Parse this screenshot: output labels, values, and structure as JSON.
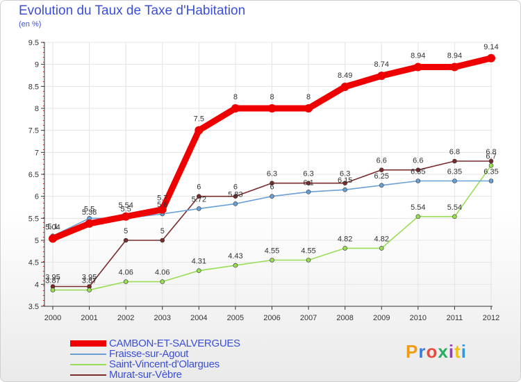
{
  "header": {
    "title": "Evolution du Taux de Taxe d'Habitation",
    "subtitle": "(en %)"
  },
  "logo": {
    "text": "Proxiti",
    "colors": [
      "#f39c12",
      "#3b7dd8",
      "#e74c3c",
      "#27ae60",
      "#8e44ad",
      "#f1c40f",
      "#3498db"
    ]
  },
  "chart_data": {
    "type": "line",
    "title": "Evolution du Taux de Taxe d'Habitation",
    "subtitle": "(en %)",
    "x": [
      "2000",
      "2001",
      "2002",
      "2003",
      "2004",
      "2005",
      "2006",
      "2007",
      "2008",
      "2009",
      "2010",
      "2011",
      "2012"
    ],
    "ylim": [
      3.5,
      9.5
    ],
    "yticks": [
      "3.5",
      "4",
      "4.5",
      "5",
      "5.5",
      "6",
      "6.5",
      "7",
      "7.5",
      "8",
      "8.5",
      "9",
      "9.5"
    ],
    "grid": true,
    "legend_position": "bottom-left",
    "series": [
      {
        "name": "CAMBON-ET-SALVERGUES",
        "color": "#ee0000",
        "values": [
          5.04,
          5.38,
          5.54,
          5.7,
          7.5,
          8,
          8,
          8,
          8.49,
          8.74,
          8.94,
          8.94,
          9.14
        ],
        "labels": [
          "5.04",
          "5.38",
          "5.54",
          "5.7",
          "7.5",
          "8",
          "8",
          "8",
          "8.49",
          "8.74",
          "8.94",
          "8.94",
          "9.14"
        ]
      },
      {
        "name": "Fraisse-sur-Agout",
        "color": "#6a9fd4",
        "values": [
          5.1,
          5.5,
          5.5,
          5.6,
          5.72,
          5.83,
          6,
          6.1,
          6.15,
          6.25,
          6.35,
          6.35,
          6.35
        ],
        "labels": [
          "5.1",
          "5.5",
          "5.5",
          "5.6",
          "5.72",
          "5.83",
          "6",
          "6.1",
          "6.15",
          "6.25",
          "6.35",
          "6.35",
          "6.35"
        ]
      },
      {
        "name": "Saint-Vincent-d'Olargues",
        "color": "#99dd55",
        "values": [
          3.87,
          3.87,
          4.06,
          4.06,
          4.31,
          4.43,
          4.55,
          4.55,
          4.82,
          4.82,
          5.54,
          5.54,
          6.7
        ],
        "labels": [
          "3.87",
          "3.87",
          "4.06",
          "4.06",
          "4.31",
          "4.43",
          "4.55",
          "4.55",
          "4.82",
          "4.82",
          "5.54",
          "5.54",
          "6.7"
        ]
      },
      {
        "name": "Murat-sur-Vèbre",
        "color": "#7a2b2b",
        "values": [
          3.95,
          3.95,
          5,
          5,
          6,
          6,
          6.3,
          6.3,
          6.3,
          6.6,
          6.6,
          6.8,
          6.8
        ],
        "labels": [
          "3.95",
          "3.95",
          "5",
          "5",
          "6",
          "6",
          "6.3",
          "6.3",
          "6.3",
          "6.6",
          "6.6",
          "6.8",
          "6.8"
        ]
      }
    ]
  }
}
